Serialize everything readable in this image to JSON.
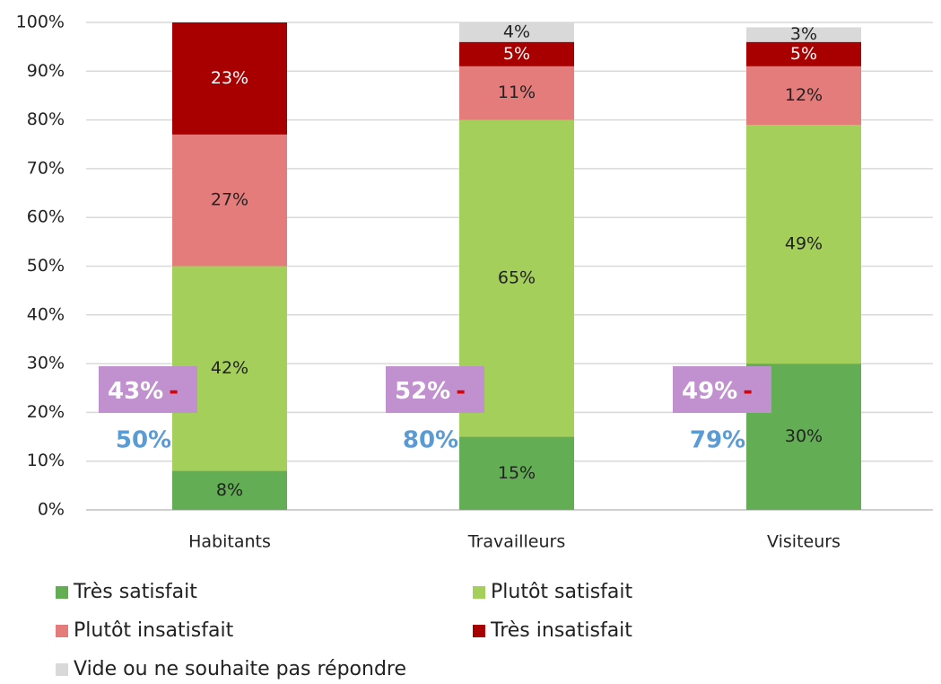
{
  "chart_data": {
    "type": "stacked_bar",
    "categories": [
      "Habitants",
      "Travailleurs",
      "Visiteurs"
    ],
    "series": [
      {
        "name": "Très satisfait",
        "color": "#63ad55",
        "label_color": "#222222",
        "values": [
          8,
          15,
          30
        ],
        "value_labels": [
          "8%",
          "15%",
          "30%"
        ]
      },
      {
        "name": "Plutôt satisfait",
        "color": "#a5cf5b",
        "label_color": "#222222",
        "values": [
          42,
          65,
          49
        ],
        "value_labels": [
          "42%",
          "65%",
          "49%"
        ]
      },
      {
        "name": "Plutôt insatisfait",
        "color": "#e57c7c",
        "label_color": "#222222",
        "values": [
          27,
          11,
          12
        ],
        "value_labels": [
          "27%",
          "11%",
          "12%"
        ]
      },
      {
        "name": "Très insatisfait",
        "color": "#a80000",
        "label_color": "#ffffff",
        "values": [
          23,
          5,
          5
        ],
        "value_labels": [
          "23%",
          "5%",
          "5%"
        ]
      },
      {
        "name": "Vide ou ne souhaite pas répondre",
        "color": "#d9d9d9",
        "label_color": "#222222",
        "values": [
          null,
          4,
          3
        ],
        "value_labels": [
          null,
          "4%",
          "3%"
        ]
      }
    ],
    "ylim": [
      0,
      100
    ],
    "yticks": [
      {
        "value": 0,
        "label": "0%"
      },
      {
        "value": 10,
        "label": "10%"
      },
      {
        "value": 20,
        "label": "20%"
      },
      {
        "value": 30,
        "label": "30%"
      },
      {
        "value": 40,
        "label": "40%"
      },
      {
        "value": 50,
        "label": "50%"
      },
      {
        "value": 60,
        "label": "60%"
      },
      {
        "value": 70,
        "label": "70%"
      },
      {
        "value": 80,
        "label": "80%"
      },
      {
        "value": 90,
        "label": "90%"
      },
      {
        "value": 100,
        "label": "100%"
      }
    ],
    "grid": true,
    "annotations": [
      {
        "box": "43%",
        "sign": "-",
        "total": "50%"
      },
      {
        "box": "52%",
        "sign": "-",
        "total": "80%"
      },
      {
        "box": "49%",
        "sign": "-",
        "total": "79%"
      }
    ]
  }
}
